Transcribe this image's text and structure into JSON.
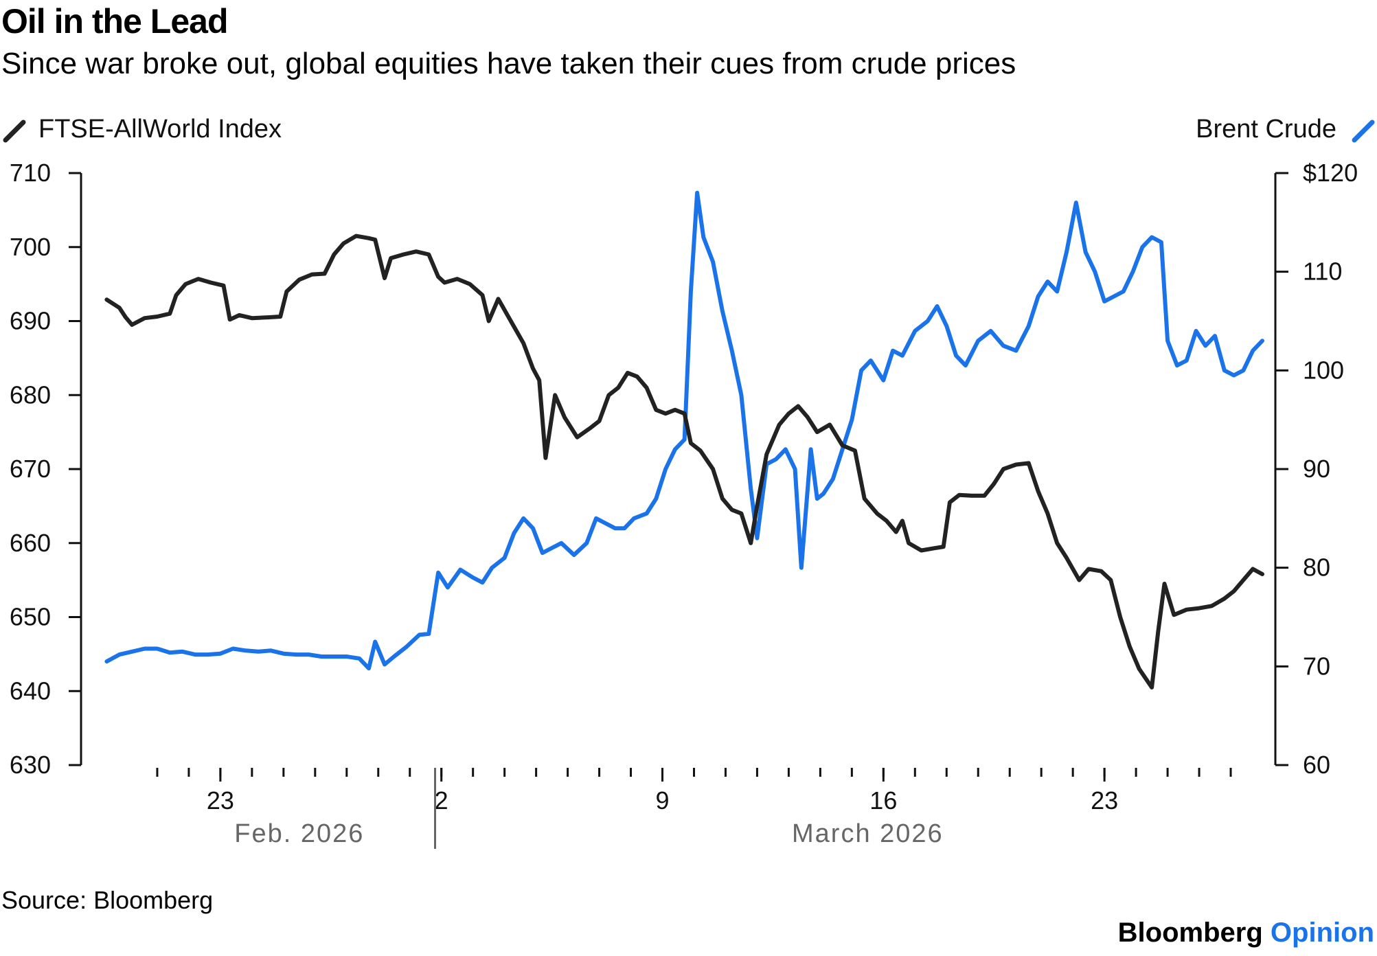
{
  "header": {
    "title": "Oil in the Lead",
    "subtitle": "Since war broke out, global equities have taken their cues from crude prices"
  },
  "footer": {
    "source": "Source: Bloomberg",
    "brand_main": "Bloomberg",
    "brand_accent": "Opinion"
  },
  "chart_data": {
    "type": "line",
    "title": "Oil in the Lead",
    "subtitle": "Since war broke out, global equities have taken their cues from crude prices",
    "x_axis": {
      "range_days": [
        0,
        37
      ],
      "tick_labels": [
        {
          "day": 4,
          "label": "23"
        },
        {
          "day": 11,
          "label": "2"
        },
        {
          "day": 18,
          "label": "9"
        },
        {
          "day": 25,
          "label": "16"
        },
        {
          "day": 32,
          "label": "23"
        }
      ],
      "minor_tick_days": [
        2,
        3,
        4,
        5,
        6,
        7,
        8,
        9,
        10,
        11,
        12,
        13,
        14,
        15,
        16,
        17,
        18,
        19,
        20,
        21,
        22,
        23,
        24,
        25,
        26,
        27,
        28,
        29,
        30,
        31,
        32,
        33,
        34,
        35,
        36
      ],
      "month_labels": [
        {
          "day": 6.5,
          "label": "Feb. 2026"
        },
        {
          "day": 24.5,
          "label": "March 2026"
        }
      ],
      "month_separator_day": 10.8
    },
    "y_left": {
      "range": [
        630,
        710
      ],
      "ticks": [
        630,
        640,
        650,
        660,
        670,
        680,
        690,
        700,
        710
      ],
      "tick_labels": [
        "630",
        "640",
        "650",
        "660",
        "670",
        "680",
        "690",
        "700",
        "710"
      ]
    },
    "y_right": {
      "range": [
        60,
        120
      ],
      "ticks": [
        60,
        70,
        80,
        90,
        100,
        110,
        120
      ],
      "tick_labels": [
        "60",
        "70",
        "80",
        "90",
        "100",
        "110",
        "$120"
      ]
    },
    "legend": {
      "left": "FTSE-AllWorld Index",
      "right": "Brent Crude"
    },
    "colors": {
      "ftse": "#222222",
      "brent": "#1a73e8"
    },
    "series": [
      {
        "name": "FTSE-AllWorld Index",
        "axis": "left",
        "color": "#222222",
        "points": [
          [
            0.4,
            692.9
          ],
          [
            0.8,
            691.8
          ],
          [
            1.0,
            690.5
          ],
          [
            1.2,
            689.5
          ],
          [
            1.6,
            690.4
          ],
          [
            2.0,
            690.6
          ],
          [
            2.4,
            691.0
          ],
          [
            2.6,
            693.5
          ],
          [
            2.9,
            695.0
          ],
          [
            3.3,
            695.7
          ],
          [
            3.7,
            695.2
          ],
          [
            4.1,
            694.8
          ],
          [
            4.3,
            690.2
          ],
          [
            4.6,
            690.8
          ],
          [
            5.0,
            690.4
          ],
          [
            5.5,
            690.5
          ],
          [
            5.9,
            690.6
          ],
          [
            6.1,
            694.0
          ],
          [
            6.5,
            695.6
          ],
          [
            6.9,
            696.3
          ],
          [
            7.3,
            696.4
          ],
          [
            7.6,
            699.0
          ],
          [
            7.9,
            700.5
          ],
          [
            8.3,
            701.5
          ],
          [
            8.7,
            701.2
          ],
          [
            8.9,
            701.0
          ],
          [
            9.2,
            695.8
          ],
          [
            9.4,
            698.5
          ],
          [
            9.8,
            699.0
          ],
          [
            10.2,
            699.4
          ],
          [
            10.6,
            699.0
          ],
          [
            10.9,
            696.0
          ],
          [
            11.1,
            695.2
          ],
          [
            11.5,
            695.7
          ],
          [
            11.9,
            695.0
          ],
          [
            12.3,
            693.5
          ],
          [
            12.5,
            690.0
          ],
          [
            12.8,
            693.0
          ],
          [
            13.2,
            690.0
          ],
          [
            13.6,
            687.0
          ],
          [
            13.9,
            683.6
          ],
          [
            14.1,
            682.0
          ],
          [
            14.3,
            671.5
          ],
          [
            14.6,
            680.0
          ],
          [
            14.9,
            677.0
          ],
          [
            15.3,
            674.3
          ],
          [
            15.7,
            675.5
          ],
          [
            16.0,
            676.5
          ],
          [
            16.3,
            680.0
          ],
          [
            16.6,
            681.0
          ],
          [
            16.9,
            683.0
          ],
          [
            17.2,
            682.5
          ],
          [
            17.5,
            681.0
          ],
          [
            17.8,
            678.0
          ],
          [
            18.1,
            677.5
          ],
          [
            18.4,
            678.0
          ],
          [
            18.7,
            677.5
          ],
          [
            18.9,
            673.5
          ],
          [
            19.2,
            672.5
          ],
          [
            19.6,
            670.0
          ],
          [
            19.9,
            666.0
          ],
          [
            20.2,
            664.5
          ],
          [
            20.5,
            664.0
          ],
          [
            20.8,
            660.0
          ],
          [
            21.0,
            665.0
          ],
          [
            21.3,
            672.0
          ],
          [
            21.7,
            676.0
          ],
          [
            22.0,
            677.5
          ],
          [
            22.3,
            678.5
          ],
          [
            22.6,
            677.0
          ],
          [
            22.9,
            675.0
          ],
          [
            23.3,
            676.0
          ],
          [
            23.7,
            673.2
          ],
          [
            24.1,
            672.5
          ],
          [
            24.4,
            666.0
          ],
          [
            24.8,
            664.0
          ],
          [
            25.1,
            663.0
          ],
          [
            25.4,
            661.5
          ],
          [
            25.6,
            663.0
          ],
          [
            25.8,
            660.0
          ],
          [
            26.2,
            659.0
          ],
          [
            26.6,
            659.3
          ],
          [
            26.9,
            659.5
          ],
          [
            27.1,
            665.5
          ],
          [
            27.4,
            666.5
          ],
          [
            27.8,
            666.4
          ],
          [
            28.2,
            666.4
          ],
          [
            28.5,
            668.0
          ],
          [
            28.8,
            670.0
          ],
          [
            29.2,
            670.6
          ],
          [
            29.6,
            670.8
          ],
          [
            29.9,
            667.0
          ],
          [
            30.2,
            664.0
          ],
          [
            30.5,
            660.0
          ],
          [
            30.8,
            658.0
          ],
          [
            31.2,
            655.0
          ],
          [
            31.5,
            656.5
          ],
          [
            31.9,
            656.2
          ],
          [
            32.2,
            655.0
          ],
          [
            32.5,
            650.0
          ],
          [
            32.8,
            646.0
          ],
          [
            33.1,
            643.0
          ],
          [
            33.5,
            640.5
          ],
          [
            33.7,
            648.0
          ],
          [
            33.9,
            654.5
          ],
          [
            34.2,
            650.3
          ],
          [
            34.6,
            651.0
          ],
          [
            35.0,
            651.2
          ],
          [
            35.4,
            651.5
          ],
          [
            35.8,
            652.5
          ],
          [
            36.1,
            653.5
          ],
          [
            36.4,
            655.0
          ],
          [
            36.7,
            656.5
          ],
          [
            37.0,
            655.8
          ]
        ]
      },
      {
        "name": "Brent Crude",
        "axis": "right",
        "color": "#1a73e8",
        "points": [
          [
            0.4,
            70.5
          ],
          [
            0.8,
            71.2
          ],
          [
            1.2,
            71.5
          ],
          [
            1.6,
            71.8
          ],
          [
            2.0,
            71.8
          ],
          [
            2.4,
            71.4
          ],
          [
            2.8,
            71.5
          ],
          [
            3.2,
            71.2
          ],
          [
            3.6,
            71.2
          ],
          [
            4.0,
            71.3
          ],
          [
            4.4,
            71.8
          ],
          [
            4.8,
            71.6
          ],
          [
            5.2,
            71.5
          ],
          [
            5.6,
            71.6
          ],
          [
            6.0,
            71.3
          ],
          [
            6.4,
            71.2
          ],
          [
            6.8,
            71.2
          ],
          [
            7.2,
            71.0
          ],
          [
            7.6,
            71.0
          ],
          [
            8.0,
            71.0
          ],
          [
            8.4,
            70.8
          ],
          [
            8.7,
            69.8
          ],
          [
            8.9,
            72.5
          ],
          [
            9.2,
            70.2
          ],
          [
            9.5,
            71.0
          ],
          [
            9.9,
            72.0
          ],
          [
            10.3,
            73.2
          ],
          [
            10.6,
            73.3
          ],
          [
            10.9,
            79.5
          ],
          [
            11.2,
            78.0
          ],
          [
            11.6,
            79.8
          ],
          [
            12.0,
            79.0
          ],
          [
            12.3,
            78.5
          ],
          [
            12.6,
            80.0
          ],
          [
            13.0,
            81.0
          ],
          [
            13.3,
            83.5
          ],
          [
            13.6,
            85.0
          ],
          [
            13.9,
            84.0
          ],
          [
            14.2,
            81.5
          ],
          [
            14.5,
            82.0
          ],
          [
            14.8,
            82.5
          ],
          [
            15.2,
            81.3
          ],
          [
            15.6,
            82.5
          ],
          [
            15.9,
            85.0
          ],
          [
            16.2,
            84.5
          ],
          [
            16.5,
            84.0
          ],
          [
            16.8,
            84.0
          ],
          [
            17.1,
            85.0
          ],
          [
            17.5,
            85.5
          ],
          [
            17.8,
            87.0
          ],
          [
            18.1,
            90.0
          ],
          [
            18.4,
            92.0
          ],
          [
            18.7,
            93.0
          ],
          [
            18.9,
            108.0
          ],
          [
            19.1,
            118.0
          ],
          [
            19.3,
            113.5
          ],
          [
            19.6,
            111.0
          ],
          [
            19.9,
            106.0
          ],
          [
            20.2,
            102.0
          ],
          [
            20.5,
            97.5
          ],
          [
            20.8,
            88.0
          ],
          [
            21.0,
            83.0
          ],
          [
            21.3,
            90.5
          ],
          [
            21.6,
            91.0
          ],
          [
            21.9,
            92.0
          ],
          [
            22.2,
            90.0
          ],
          [
            22.4,
            80.0
          ],
          [
            22.7,
            92.0
          ],
          [
            22.9,
            87.0
          ],
          [
            23.1,
            87.5
          ],
          [
            23.4,
            89.0
          ],
          [
            23.7,
            92.0
          ],
          [
            24.0,
            95.0
          ],
          [
            24.3,
            100.0
          ],
          [
            24.6,
            101.0
          ],
          [
            25.0,
            99.0
          ],
          [
            25.3,
            102.0
          ],
          [
            25.6,
            101.5
          ],
          [
            26.0,
            104.0
          ],
          [
            26.4,
            105.0
          ],
          [
            26.7,
            106.5
          ],
          [
            27.0,
            104.5
          ],
          [
            27.3,
            101.5
          ],
          [
            27.6,
            100.5
          ],
          [
            28.0,
            103.0
          ],
          [
            28.4,
            104.0
          ],
          [
            28.8,
            102.5
          ],
          [
            29.2,
            102.0
          ],
          [
            29.6,
            104.5
          ],
          [
            29.9,
            107.5
          ],
          [
            30.2,
            109.0
          ],
          [
            30.5,
            108.0
          ],
          [
            30.8,
            112.0
          ],
          [
            31.1,
            117.0
          ],
          [
            31.4,
            112.0
          ],
          [
            31.7,
            110.0
          ],
          [
            32.0,
            107.0
          ],
          [
            32.3,
            107.5
          ],
          [
            32.6,
            108.0
          ],
          [
            32.9,
            110.0
          ],
          [
            33.2,
            112.5
          ],
          [
            33.5,
            113.5
          ],
          [
            33.8,
            113.0
          ],
          [
            34.0,
            103.0
          ],
          [
            34.3,
            100.5
          ],
          [
            34.6,
            101.0
          ],
          [
            34.9,
            104.0
          ],
          [
            35.2,
            102.5
          ],
          [
            35.5,
            103.5
          ],
          [
            35.8,
            100.0
          ],
          [
            36.1,
            99.5
          ],
          [
            36.4,
            100.0
          ],
          [
            36.7,
            102.0
          ],
          [
            37.0,
            103.0
          ]
        ]
      }
    ]
  }
}
